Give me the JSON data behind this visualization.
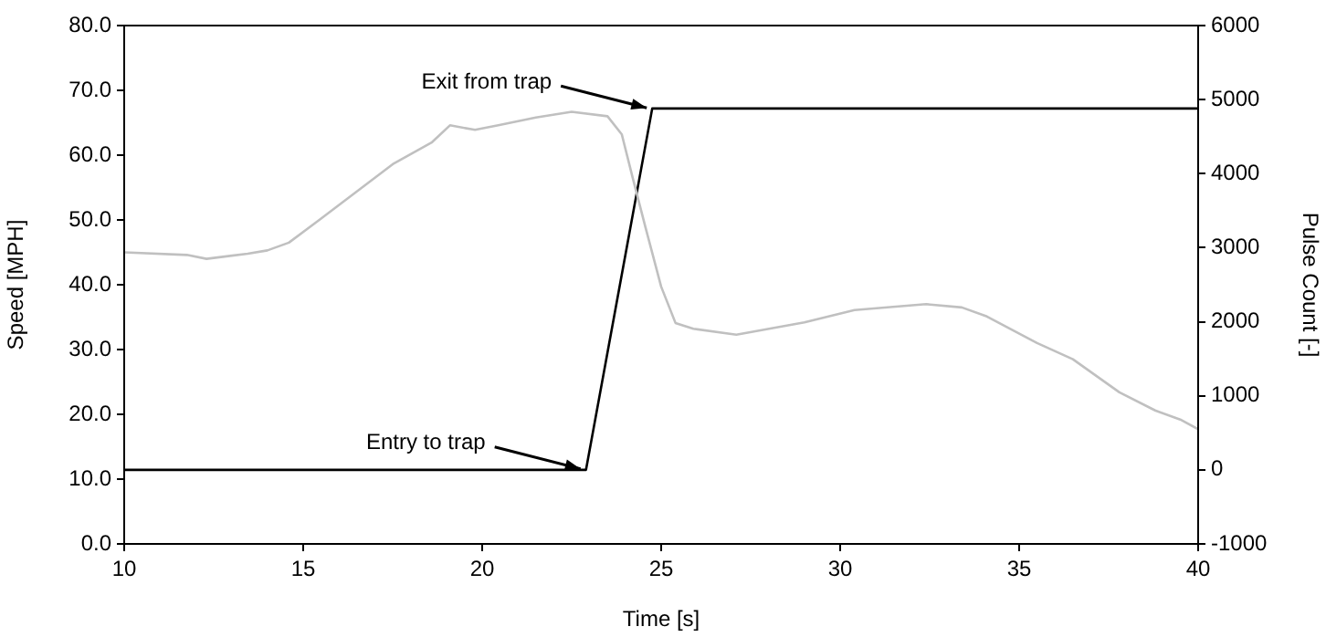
{
  "chart_data": {
    "type": "line",
    "xlabel": "Time [s]",
    "ylabel": "Speed [MPH]",
    "y2label": "Pulse Count [-]",
    "xlim": [
      10,
      40
    ],
    "xticks": [
      10,
      15,
      20,
      25,
      30,
      35,
      40
    ],
    "ylim": [
      0,
      80
    ],
    "yticks": [
      {
        "value": 0,
        "label": "0.0"
      },
      {
        "value": 10,
        "label": "10.0"
      },
      {
        "value": 20,
        "label": "20.0"
      },
      {
        "value": 30,
        "label": "30.0"
      },
      {
        "value": 40,
        "label": "40.0"
      },
      {
        "value": 50,
        "label": "50.0"
      },
      {
        "value": 60,
        "label": "60.0"
      },
      {
        "value": 70,
        "label": "70.0"
      },
      {
        "value": 80,
        "label": "80.0"
      }
    ],
    "y2lim": [
      -1000,
      6000
    ],
    "y2ticks": [
      -1000,
      0,
      1000,
      2000,
      3000,
      4000,
      5000,
      6000
    ],
    "grid": false,
    "legend": false,
    "marker": "none",
    "line_style": "solid",
    "series": [
      {
        "color": "#c0c0c0",
        "x": [
          10,
          11.75,
          12.3,
          13.45,
          14,
          14.6,
          15.5,
          16.5,
          17.5,
          18.6,
          19.1,
          19.8,
          20.45,
          21.5,
          22.5,
          23.5,
          23.9,
          24.2,
          24.55,
          25,
          25.4,
          25.9,
          27.1,
          29,
          30.4,
          32.4,
          33.4,
          34.1,
          35.5,
          36.5,
          37.8,
          38.8,
          39.5,
          40
        ],
        "values": [
          45.0,
          44.6,
          44.0,
          44.8,
          45.3,
          46.5,
          50.2,
          54.4,
          58.6,
          62.0,
          64.6,
          63.9,
          64.6,
          65.8,
          66.7,
          66.0,
          63.2,
          56.6,
          49.1,
          39.7,
          34.1,
          33.2,
          32.3,
          34.2,
          36.1,
          37.0,
          36.5,
          35.1,
          31.0,
          28.5,
          23.4,
          20.6,
          19.2,
          17.7
        ]
      },
      {
        "color": "#000000",
        "axis": "y2",
        "x": [
          10,
          22.9,
          24.75,
          40
        ],
        "values": [
          0,
          0,
          4880,
          4880
        ]
      }
    ],
    "annotations": [
      {
        "text": "Entry to trap",
        "x": 22.9,
        "y": 11.3
      },
      {
        "text": "Exit from trap",
        "x": 24.75,
        "y": 67.0
      }
    ]
  }
}
